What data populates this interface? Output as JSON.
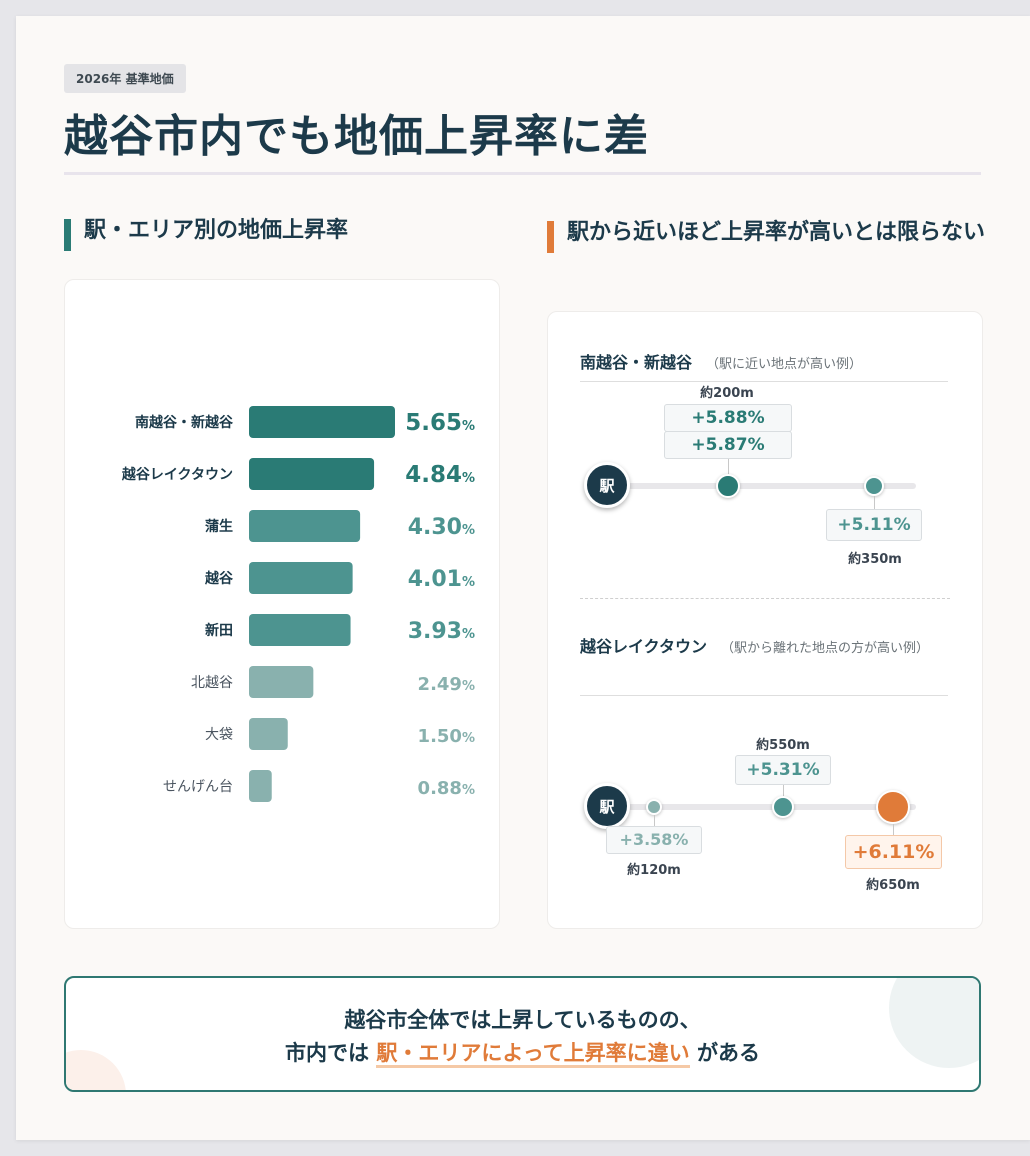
{
  "header": {
    "badge": "2026年 基準地価",
    "title": "越谷市内でも地価上昇率に差"
  },
  "left_section": {
    "heading": "駅・エリア別の地価上昇率"
  },
  "right_section": {
    "heading": "駅から近いほど上昇率が高いとは限らない",
    "panel1": {
      "title": "南越谷・新越谷",
      "note": "（駅に近い地点が高い例）",
      "station_label": "駅",
      "points": [
        {
          "distance": "約200m",
          "values": [
            "+5.88%",
            "+5.87%"
          ]
        },
        {
          "distance": "約350m",
          "values": [
            "+5.11%"
          ]
        }
      ]
    },
    "panel2": {
      "title": "越谷レイクタウン",
      "note": "（駅から離れた地点の方が高い例）",
      "station_label": "駅",
      "points": [
        {
          "distance": "約120m",
          "values": [
            "+3.58%"
          ]
        },
        {
          "distance": "約550m",
          "values": [
            "+5.31%"
          ]
        },
        {
          "distance": "約650m",
          "values": [
            "+6.11%"
          ]
        }
      ]
    }
  },
  "summary": {
    "line1": "越谷市全体では上昇しているものの、",
    "line2_pre": "市内では",
    "line2_highlight": "駅・エリアによって上昇率に違い",
    "line2_post": "がある"
  },
  "colors": {
    "navy": "#1c3a4a",
    "teal_dark": "#2a7b75",
    "teal_mid": "#4d9490",
    "teal_light": "#89b1ae",
    "orange": "#e07b39"
  },
  "chart_data": {
    "type": "bar",
    "orientation": "horizontal",
    "categories": [
      "南越谷・新越谷",
      "越谷レイクタウン",
      "蒲生",
      "越谷",
      "新田",
      "北越谷",
      "大袋",
      "せんげん台"
    ],
    "values": [
      5.65,
      4.84,
      4.3,
      4.01,
      3.93,
      2.49,
      1.5,
      0.88
    ],
    "value_labels": [
      "5.65",
      "4.84",
      "4.30",
      "4.01",
      "3.93",
      "2.49",
      "1.50",
      "0.88"
    ],
    "unit": "%",
    "tiers": [
      "top",
      "top",
      "mid",
      "mid",
      "mid",
      "low",
      "low",
      "low"
    ],
    "xlim": [
      0,
      5.65
    ]
  }
}
